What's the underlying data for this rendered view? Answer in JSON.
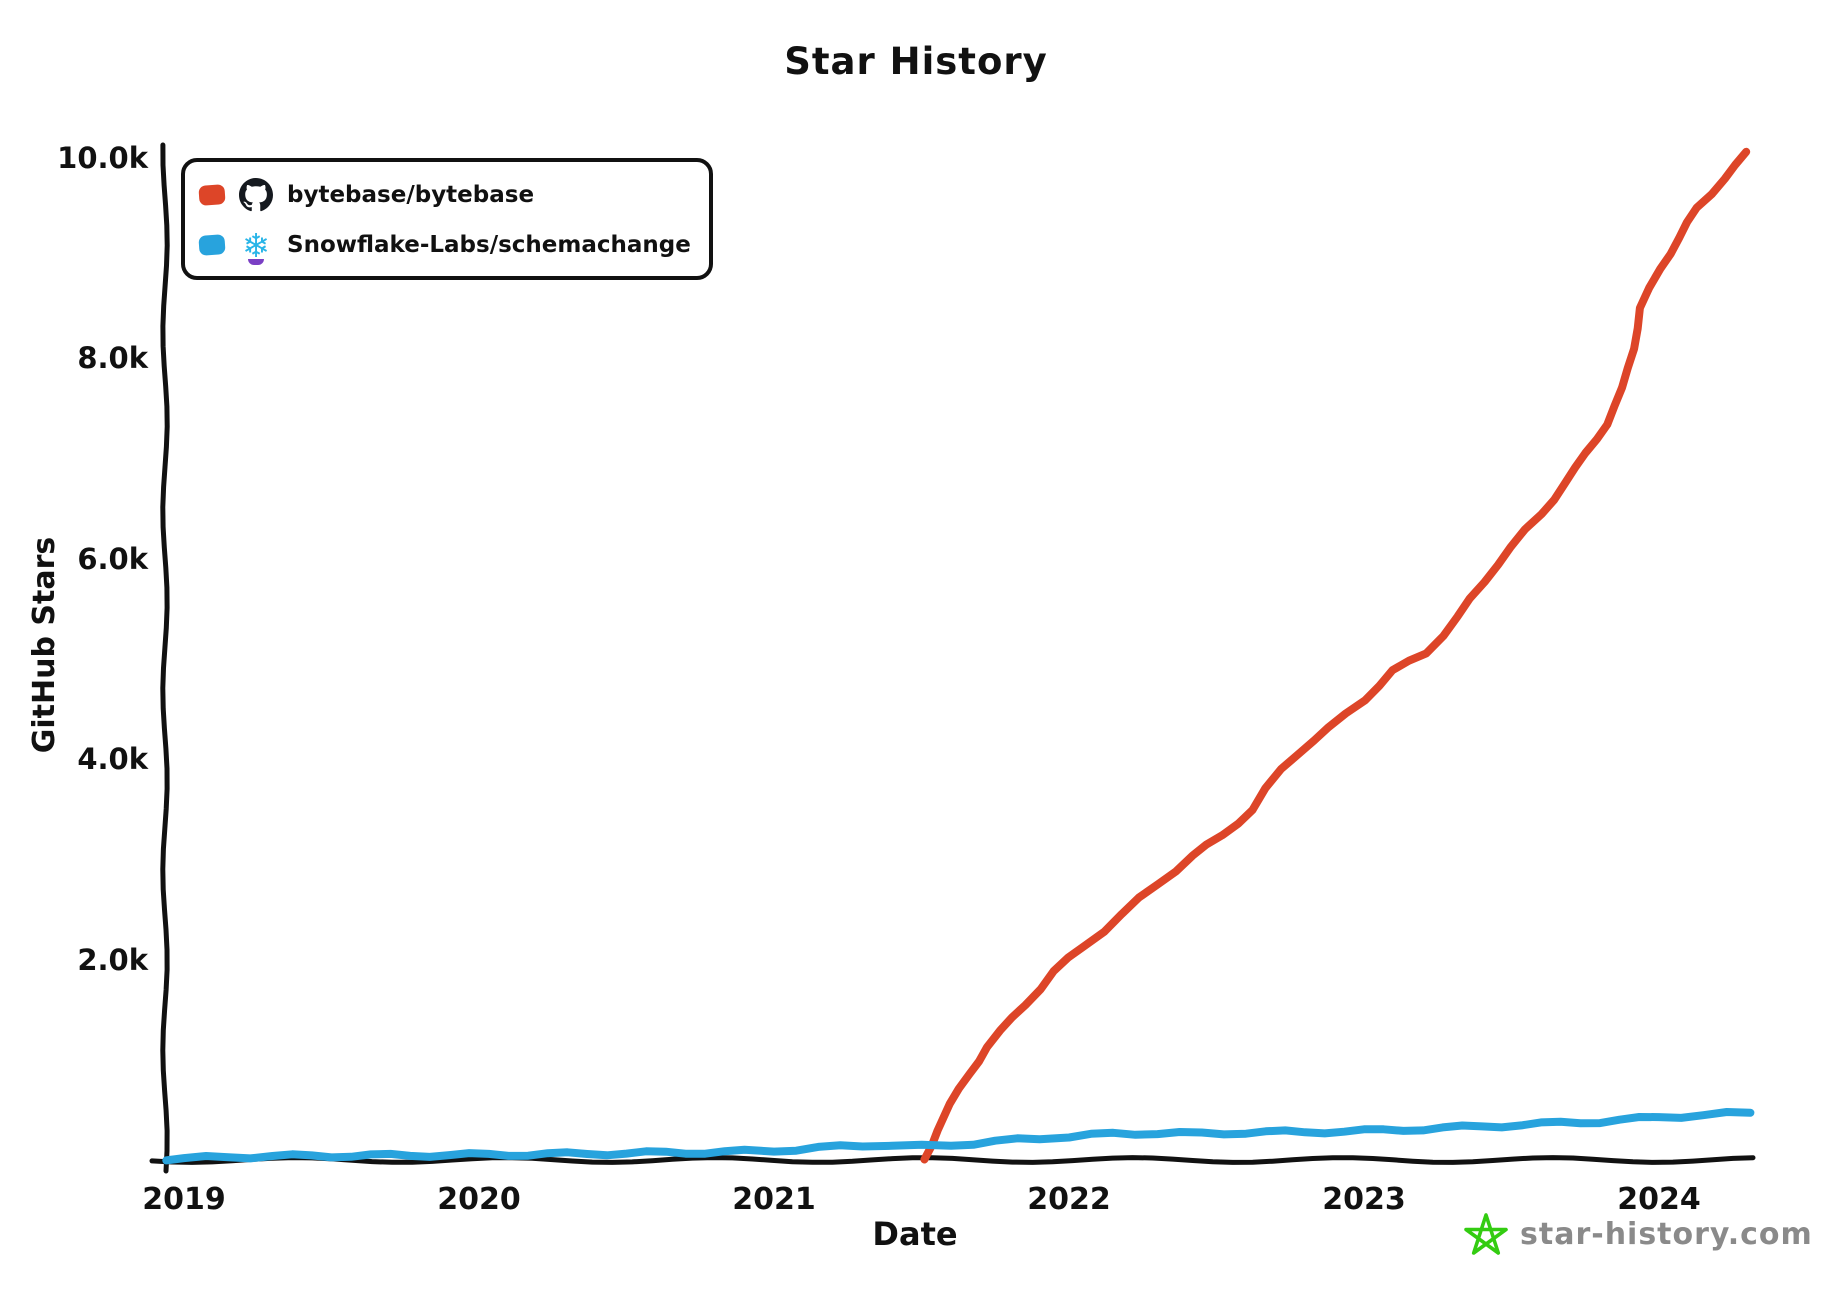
{
  "title": "Star History",
  "watermark": {
    "text": "star-history.com",
    "text_color": "#8a8a8a",
    "star_color": "#33cc11"
  },
  "icons": {
    "github_octocat_color": "#15191f",
    "snowflake_color": "#29b5e8",
    "snowflake_accent_color": "#7a3fc4"
  },
  "chart_data": {
    "type": "line",
    "title": "Star History",
    "xlabel": "Date",
    "ylabel": "GitHub Stars",
    "grid": false,
    "legend_position": "top-left",
    "axis_color": "#111111",
    "xlim": [
      2018.94,
      2024.32
    ],
    "ylim": [
      0,
      10200
    ],
    "x_ticks": [
      "2019",
      "2020",
      "2021",
      "2022",
      "2023",
      "2024"
    ],
    "x_tick_years": [
      2019,
      2020,
      2021,
      2022,
      2023,
      2024
    ],
    "y_ticks": [
      "2.0k",
      "4.0k",
      "6.0k",
      "8.0k",
      "10.0k"
    ],
    "y_tick_values": [
      2000,
      4000,
      6000,
      8000,
      10000
    ],
    "series": [
      {
        "name": "bytebase/bytebase",
        "color": "#dd4528",
        "icon": "github-octocat-icon",
        "points": [
          [
            2021.51,
            5
          ],
          [
            2021.55,
            300
          ],
          [
            2021.6,
            550
          ],
          [
            2021.66,
            860
          ],
          [
            2021.72,
            1130
          ],
          [
            2021.77,
            1280
          ],
          [
            2021.85,
            1550
          ],
          [
            2021.95,
            1880
          ],
          [
            2022.05,
            2130
          ],
          [
            2022.18,
            2450
          ],
          [
            2022.3,
            2760
          ],
          [
            2022.42,
            3030
          ],
          [
            2022.52,
            3240
          ],
          [
            2022.62,
            3500
          ],
          [
            2022.72,
            3900
          ],
          [
            2022.78,
            4080
          ],
          [
            2022.88,
            4300
          ],
          [
            2023.0,
            4600
          ],
          [
            2023.1,
            4880
          ],
          [
            2023.21,
            5060
          ],
          [
            2023.32,
            5420
          ],
          [
            2023.45,
            5950
          ],
          [
            2023.6,
            6450
          ],
          [
            2023.72,
            6900
          ],
          [
            2023.82,
            7350
          ],
          [
            2023.88,
            7700
          ],
          [
            2023.94,
            8500
          ],
          [
            2024.0,
            8900
          ],
          [
            2024.07,
            9200
          ],
          [
            2024.13,
            9500
          ],
          [
            2024.22,
            9800
          ],
          [
            2024.3,
            10050
          ]
        ]
      },
      {
        "name": "Snowflake-Labs/schemachange",
        "color": "#28a3dd",
        "icon": "snowflake-icon",
        "points": [
          [
            2018.94,
            12
          ],
          [
            2019.0,
            15
          ],
          [
            2019.15,
            30
          ],
          [
            2019.3,
            38
          ],
          [
            2019.5,
            42
          ],
          [
            2019.7,
            45
          ],
          [
            2019.9,
            50
          ],
          [
            2020.1,
            55
          ],
          [
            2020.3,
            60
          ],
          [
            2020.5,
            68
          ],
          [
            2020.7,
            75
          ],
          [
            2020.9,
            85
          ],
          [
            2021.0,
            95
          ],
          [
            2021.15,
            120
          ],
          [
            2021.3,
            145
          ],
          [
            2021.4,
            150
          ],
          [
            2021.5,
            135
          ],
          [
            2021.6,
            150
          ],
          [
            2021.75,
            185
          ],
          [
            2021.9,
            215
          ],
          [
            2022.0,
            235
          ],
          [
            2022.15,
            260
          ],
          [
            2022.3,
            270
          ],
          [
            2022.45,
            262
          ],
          [
            2022.6,
            275
          ],
          [
            2022.8,
            280
          ],
          [
            2023.0,
            290
          ],
          [
            2023.2,
            310
          ],
          [
            2023.4,
            335
          ],
          [
            2023.6,
            360
          ],
          [
            2023.8,
            385
          ],
          [
            2024.0,
            425
          ],
          [
            2024.15,
            450
          ],
          [
            2024.31,
            472
          ]
        ]
      }
    ]
  }
}
